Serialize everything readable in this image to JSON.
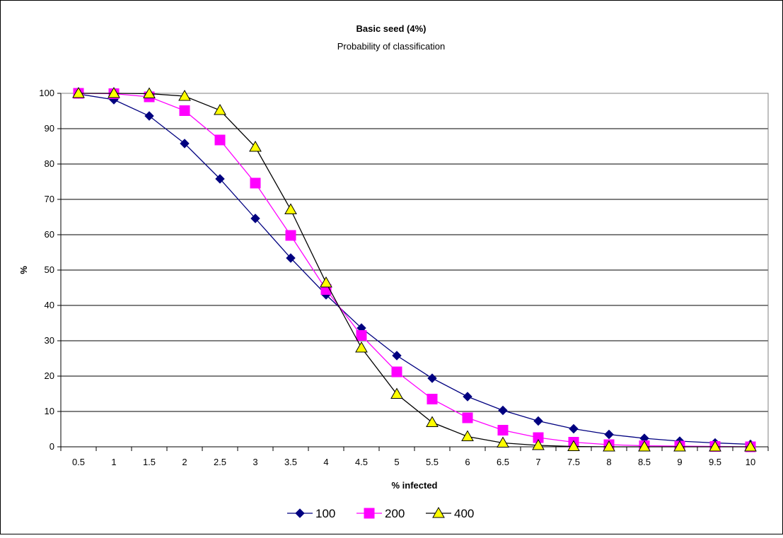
{
  "chart_data": {
    "type": "line",
    "title": "Basic seed (4%)",
    "subtitle": "Probability of classification",
    "xlabel": "% infected",
    "ylabel": "%",
    "ylim": [
      0,
      100
    ],
    "yticks": [
      0,
      10,
      20,
      30,
      40,
      50,
      60,
      70,
      80,
      90,
      100
    ],
    "grid": "horizontal",
    "legend_position": "bottom",
    "categories": [
      "0.5",
      "1",
      "1.5",
      "2",
      "2.5",
      "3",
      "3.5",
      "4",
      "4.5",
      "5",
      "5.5",
      "6",
      "6.5",
      "7",
      "7.5",
      "8",
      "8.5",
      "9",
      "9.5",
      "10"
    ],
    "series": [
      {
        "name": "100",
        "color": "#000080",
        "marker": "diamond",
        "values": [
          99.8,
          98.2,
          93.6,
          85.8,
          75.8,
          64.6,
          53.4,
          43.0,
          33.6,
          25.8,
          19.4,
          14.2,
          10.3,
          7.3,
          5.1,
          3.5,
          2.4,
          1.6,
          1.1,
          0.7
        ]
      },
      {
        "name": "200",
        "color": "#ff00ff",
        "marker": "square",
        "values": [
          100,
          99.9,
          99.0,
          95.1,
          86.8,
          74.6,
          59.8,
          44.5,
          31.5,
          21.2,
          13.5,
          8.2,
          4.7,
          2.6,
          1.3,
          0.6,
          0.3,
          0.2,
          0.1,
          0.0
        ]
      },
      {
        "name": "400",
        "color": "#ffff00",
        "marker": "triangle",
        "values": [
          100,
          100,
          99.9,
          99.2,
          95.2,
          84.8,
          67.1,
          46.4,
          28.0,
          14.9,
          6.9,
          2.9,
          1.1,
          0.4,
          0.1,
          0.0,
          0.0,
          0.0,
          0.0,
          0.0
        ]
      }
    ]
  }
}
